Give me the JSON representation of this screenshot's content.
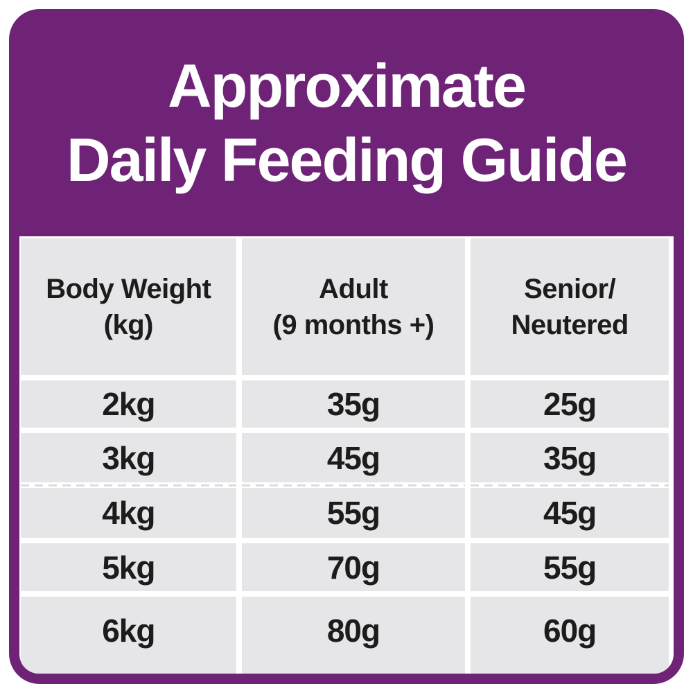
{
  "title": {
    "line1": "Approximate",
    "line2": "Daily Feeding Guide"
  },
  "table": {
    "columns": [
      {
        "line1": "Body Weight",
        "line2": "(kg)"
      },
      {
        "line1": "Adult",
        "line2": "(9 months +)"
      },
      {
        "line1": "Senior/",
        "line2": "Neutered"
      }
    ],
    "rows": [
      {
        "body_weight": "2kg",
        "adult": "35g",
        "senior_neutered": "25g"
      },
      {
        "body_weight": "3kg",
        "adult": "45g",
        "senior_neutered": "35g"
      },
      {
        "body_weight": "4kg",
        "adult": "55g",
        "senior_neutered": "45g"
      },
      {
        "body_weight": "5kg",
        "adult": "70g",
        "senior_neutered": "55g"
      },
      {
        "body_weight": "6kg",
        "adult": "80g",
        "senior_neutered": "60g"
      }
    ]
  },
  "chart_data": {
    "type": "table",
    "title": "Approximate Daily Feeding Guide",
    "columns": [
      "Body Weight (kg)",
      "Adult (9 months +)",
      "Senior/Neutered"
    ],
    "rows": [
      [
        "2kg",
        "35g",
        "25g"
      ],
      [
        "3kg",
        "45g",
        "35g"
      ],
      [
        "4kg",
        "55g",
        "45g"
      ],
      [
        "5kg",
        "70g",
        "55g"
      ],
      [
        "6kg",
        "80g",
        "60g"
      ]
    ]
  },
  "colors": {
    "purple": "#6E2377",
    "cell_gray": "#E6E5E7",
    "text_dark": "#1C1C1C",
    "white": "#FFFFFF"
  }
}
